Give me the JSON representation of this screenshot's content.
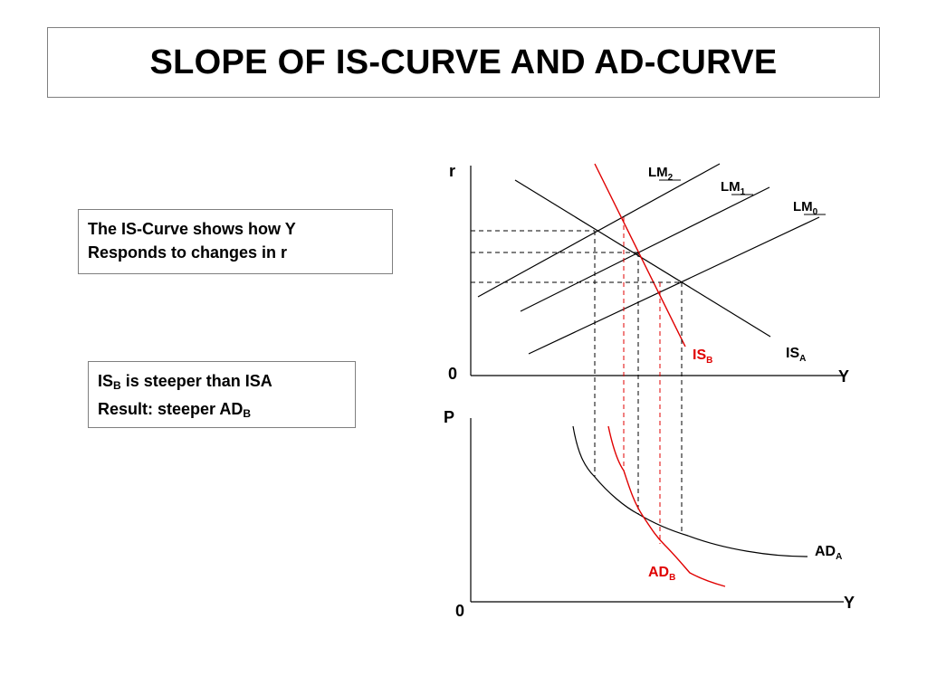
{
  "title": "SLOPE OF IS-CURVE AND AD-CURVE",
  "note_1": {
    "line_1": "The IS-Curve shows how Y",
    "line_2": "Responds to changes in r"
  },
  "note_2": {
    "line_1_prefix": "IS",
    "line_1_sub": "B",
    "line_1_suffix": " is steeper than ISA",
    "line_2_prefix": "Result: steeper AD",
    "line_2_sub": "B"
  },
  "top_graph": {
    "y_axis_label": "r",
    "x_axis_label": "Y",
    "origin_label": "0",
    "curves": {
      "lm2": {
        "base": "LM",
        "sub": "2"
      },
      "lm1": {
        "base": "LM",
        "sub": "1"
      },
      "lm0": {
        "base": "LM",
        "sub": "0"
      },
      "is_a": {
        "base": "IS",
        "sub": "A"
      },
      "is_b": {
        "base": "IS",
        "sub": "B"
      }
    }
  },
  "bottom_graph": {
    "y_axis_label": "P",
    "x_axis_label": "Y",
    "origin_label": "0",
    "curves": {
      "ad_a": {
        "base": "AD",
        "sub": "A"
      },
      "ad_b": {
        "base": "AD",
        "sub": "B"
      }
    }
  },
  "colors": {
    "black": "#000000",
    "red": "#e00000",
    "box_border": "#7f7f7f"
  }
}
